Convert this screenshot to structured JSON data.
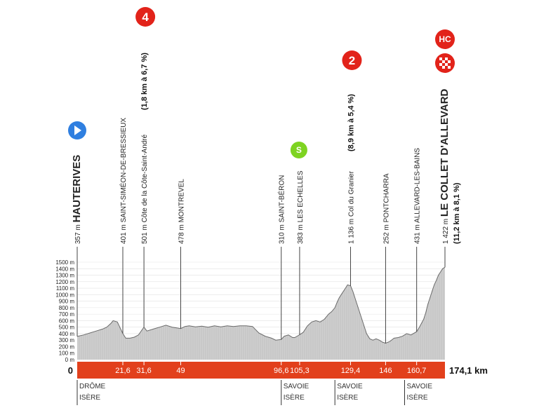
{
  "chart_data": {
    "type": "area",
    "title": "",
    "xlabel": "",
    "ylabel": "",
    "xlim": [
      0,
      174.1
    ],
    "ylim": [
      0,
      1500
    ],
    "y_unit": "m",
    "y_ticks": [
      "0 m",
      "100 m",
      "200 m",
      "300 m",
      "400 m",
      "500 m",
      "600 m",
      "700 m",
      "800 m",
      "900 m",
      "1000 m",
      "1100 m",
      "1200 m",
      "1300 m",
      "1400 m",
      "1500 m"
    ],
    "y_tick_values": [
      0,
      100,
      200,
      300,
      400,
      500,
      600,
      700,
      800,
      900,
      1000,
      1100,
      1200,
      1300,
      1400,
      1500
    ],
    "x_start_label": "0",
    "x_end_label": "174,1 km",
    "grid": true,
    "profile": {
      "x": [
        0,
        3,
        6,
        9,
        12,
        14,
        16,
        17,
        19,
        21.6,
        23,
        25,
        27,
        29,
        31.6,
        33,
        36,
        39,
        42,
        45,
        49,
        51,
        53,
        56,
        59,
        62,
        65,
        68,
        71,
        74,
        77,
        80,
        83,
        86,
        89,
        92,
        94,
        96.6,
        98,
        100,
        102,
        103,
        105.3,
        107,
        109,
        111,
        113,
        115,
        117,
        119,
        120.5,
        122,
        123,
        124,
        125,
        126,
        127,
        128,
        129.4,
        130.5,
        132,
        134,
        135.5,
        137,
        138.5,
        140,
        141.5,
        143,
        144.5,
        146,
        148,
        150,
        152,
        154,
        156,
        158,
        160.7,
        162,
        163,
        164,
        165,
        166,
        167,
        168,
        169,
        170,
        171,
        172,
        173,
        174.1
      ],
      "y": [
        357,
        380,
        410,
        440,
        470,
        500,
        560,
        600,
        580,
        401,
        330,
        330,
        345,
        380,
        501,
        440,
        470,
        500,
        530,
        500,
        478,
        510,
        520,
        505,
        515,
        500,
        520,
        505,
        520,
        510,
        520,
        520,
        510,
        410,
        360,
        330,
        300,
        310,
        360,
        380,
        340,
        340,
        383,
        420,
        520,
        580,
        600,
        580,
        620,
        700,
        740,
        800,
        880,
        950,
        1000,
        1050,
        1100,
        1150,
        1136,
        1050,
        900,
        700,
        550,
        400,
        320,
        300,
        320,
        300,
        270,
        252,
        280,
        330,
        340,
        360,
        400,
        380,
        431,
        500,
        560,
        620,
        720,
        850,
        950,
        1050,
        1150,
        1220,
        1300,
        1350,
        1400,
        1422
      ]
    },
    "waypoints": [
      {
        "km": 0,
        "text": "357 m",
        "name": "HAUTERIVES",
        "bold": true
      },
      {
        "km": 21.6,
        "text": "401 m",
        "name": "SAINT-SIMÉON-DE-BRESSIEUX",
        "bold": false
      },
      {
        "km": 31.6,
        "text": "501 m",
        "name": "Côte de la Côte-Saint-André",
        "climb_info": "(1,8 km à 6,7 %)",
        "bold": false
      },
      {
        "km": 49,
        "text": "478 m",
        "name": "MONTREVEL",
        "bold": false
      },
      {
        "km": 96.6,
        "text": "310 m",
        "name": "SAINT-BÉRON",
        "bold": false
      },
      {
        "km": 105.3,
        "text": "383 m",
        "name": "LES ECHELLES",
        "bold": false
      },
      {
        "km": 129.4,
        "text": "1 136 m",
        "name": "Col du Granier",
        "climb_info": "(8,9 km à 5,4 %)",
        "bold": false
      },
      {
        "km": 146,
        "text": "252 m",
        "name": "PONTCHARRA",
        "bold": false
      },
      {
        "km": 160.7,
        "text": "431 m",
        "name": "ALLEVARD-LES-BAINS",
        "bold": false
      },
      {
        "km": 174.1,
        "text": "1 422 m",
        "name": "LE COLLET D'ALLEVARD",
        "climb_info": "(11,2 km à 8,1 %)",
        "bold": true
      }
    ],
    "km_markers": [
      {
        "km": 21.6,
        "label": "21,6"
      },
      {
        "km": 31.6,
        "label": "31,6"
      },
      {
        "km": 49,
        "label": "49"
      },
      {
        "km": 96.6,
        "label": "96,6"
      },
      {
        "km": 105.3,
        "label": "105,3"
      },
      {
        "km": 129.4,
        "label": "129,4"
      },
      {
        "km": 146,
        "label": "146"
      },
      {
        "km": 160.7,
        "label": "160,7"
      }
    ],
    "climb_badges": [
      {
        "km": 31.6,
        "label": "4",
        "color": "#e2231a"
      },
      {
        "km": 129.4,
        "label": "2",
        "color": "#e2231a"
      },
      {
        "km": 174.1,
        "label": "HC",
        "color": "#e2231a"
      }
    ],
    "region_borders": [
      {
        "km": 0,
        "top": "DRÔME",
        "bottom": "ISÈRE"
      },
      {
        "km": 96.6,
        "top": "SAVOIE",
        "bottom": "ISÈRE"
      },
      {
        "km": 122,
        "top": "SAVOIE",
        "bottom": "ISÈRE"
      },
      {
        "km": 155,
        "top": "SAVOIE",
        "bottom": "ISÈRE"
      }
    ],
    "colors": {
      "band": "#e2401c",
      "profile_fill": "#cfcfcf",
      "profile_edge": "#6b6b6b",
      "climb_badge": "#e2231a",
      "start_icon": "#2f7fe0",
      "sprint_icon": "#7ed321"
    },
    "icons": {
      "start": "start-play-icon",
      "sprint": "sprint-s-icon",
      "finish": "finish-checkered-icon"
    },
    "sprint_label": "S",
    "sprint_km": 105.3
  }
}
